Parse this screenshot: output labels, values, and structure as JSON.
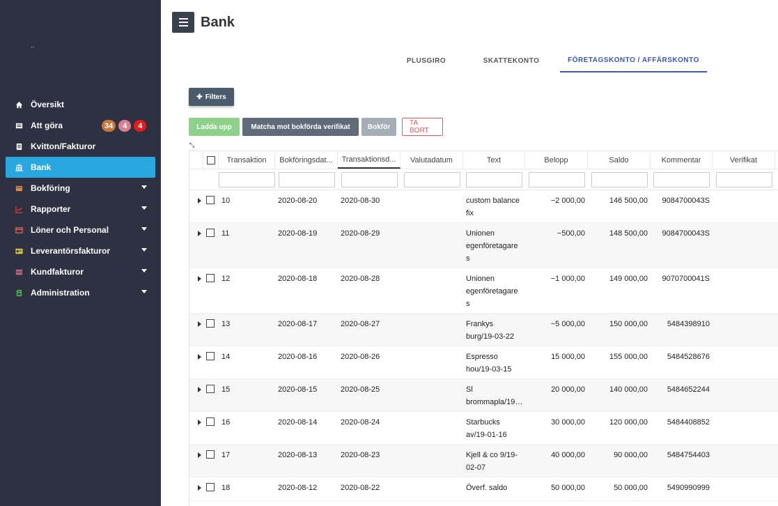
{
  "sidebar": {
    "logo_text": "..",
    "items": [
      {
        "label": "Översikt",
        "icon": "home-icon",
        "active": false,
        "has_caret": false
      },
      {
        "label": "Att göra",
        "icon": "inbox-icon",
        "active": false,
        "has_caret": false
      },
      {
        "label": "Kvitton/Fakturor",
        "icon": "receipt-icon",
        "active": false,
        "has_caret": false
      },
      {
        "label": "Bank",
        "icon": "bank-icon",
        "active": true,
        "has_caret": false
      },
      {
        "label": "Bokföring",
        "icon": "book-icon",
        "active": false,
        "has_caret": true
      },
      {
        "label": "Rapporter",
        "icon": "chart-icon",
        "active": false,
        "has_caret": true
      },
      {
        "label": "Löner och Personal",
        "icon": "card-icon",
        "active": false,
        "has_caret": true
      },
      {
        "label": "Leverantörsfakturor",
        "icon": "invoice-icon",
        "active": false,
        "has_caret": true
      },
      {
        "label": "Kundfakturor",
        "icon": "customer-invoice-icon",
        "active": false,
        "has_caret": true
      },
      {
        "label": "Administration",
        "icon": "admin-icon",
        "active": false,
        "has_caret": true
      }
    ],
    "badges": [
      {
        "count": "34",
        "color": "#c8763c"
      },
      {
        "count": "4",
        "color": "#d9808e"
      },
      {
        "count": "4",
        "color": "#e31b1b"
      }
    ]
  },
  "header": {
    "title": "Bank"
  },
  "tabs": [
    {
      "label": "PLUSGIRO"
    },
    {
      "label": "SKATTEKONTO"
    },
    {
      "label": "FÖRETAGSKONTO / AFFÄRSKONTO"
    }
  ],
  "toolbar": {
    "filters_label": "Filters",
    "upload_label": "Ladda upp",
    "match_label": "Matcha mot bokförda verifikat",
    "book_label": "Bokför",
    "delete_label": "TA BORT"
  },
  "table": {
    "columns": [
      "Transaktion",
      "Bokföringsdat...",
      "Transaktionsd...",
      "Valutadatum",
      "Text",
      "Belopp",
      "Saldo",
      "Kommentar",
      "Verifikat"
    ],
    "rows": [
      {
        "tr": "10",
        "bd": "2020-08-20",
        "td": "2020-08-30",
        "vd": "",
        "text": "custom balance fix",
        "belopp": "−2 000,00",
        "saldo": "146 500,00",
        "kommentar": "9084700043S",
        "verifikat": ""
      },
      {
        "tr": "11",
        "bd": "2020-08-19",
        "td": "2020-08-29",
        "vd": "",
        "text": "Unionen egenföretagare s",
        "belopp": "−500,00",
        "saldo": "148 500,00",
        "kommentar": "9084700043S",
        "verifikat": ""
      },
      {
        "tr": "12",
        "bd": "2020-08-18",
        "td": "2020-08-28",
        "vd": "",
        "text": "Unionen egenföretagare s",
        "belopp": "−1 000,00",
        "saldo": "149 000,00",
        "kommentar": "9070700041S",
        "verifikat": ""
      },
      {
        "tr": "13",
        "bd": "2020-08-17",
        "td": "2020-08-27",
        "vd": "",
        "text": "Frankys burg/19-03-22",
        "belopp": "−5 000,00",
        "saldo": "150 000,00",
        "kommentar": "5484398910",
        "verifikat": ""
      },
      {
        "tr": "14",
        "bd": "2020-08-16",
        "td": "2020-08-26",
        "vd": "",
        "text": "Espresso hou/19-03-15",
        "belopp": "15 000,00",
        "saldo": "155 000,00",
        "kommentar": "5484528676",
        "verifikat": ""
      },
      {
        "tr": "15",
        "bd": "2020-08-15",
        "td": "2020-08-25",
        "vd": "",
        "text": "Sl brommapla/19…",
        "belopp": "20 000,00",
        "saldo": "140 000,00",
        "kommentar": "5484652244",
        "verifikat": ""
      },
      {
        "tr": "16",
        "bd": "2020-08-14",
        "td": "2020-08-24",
        "vd": "",
        "text": "Starbucks av/19-01-16",
        "belopp": "30 000,00",
        "saldo": "120 000,00",
        "kommentar": "5484408852",
        "verifikat": ""
      },
      {
        "tr": "17",
        "bd": "2020-08-13",
        "td": "2020-08-23",
        "vd": "",
        "text": "Kjell & co 9/19-02-07",
        "belopp": "40 000,00",
        "saldo": "90 000,00",
        "kommentar": "5484754403",
        "verifikat": ""
      },
      {
        "tr": "18",
        "bd": "2020-08-12",
        "td": "2020-08-22",
        "vd": "",
        "text": "Överf. saldo",
        "belopp": "50 000,00",
        "saldo": "50 000,00",
        "kommentar": "5490990999",
        "verifikat": ""
      }
    ]
  }
}
